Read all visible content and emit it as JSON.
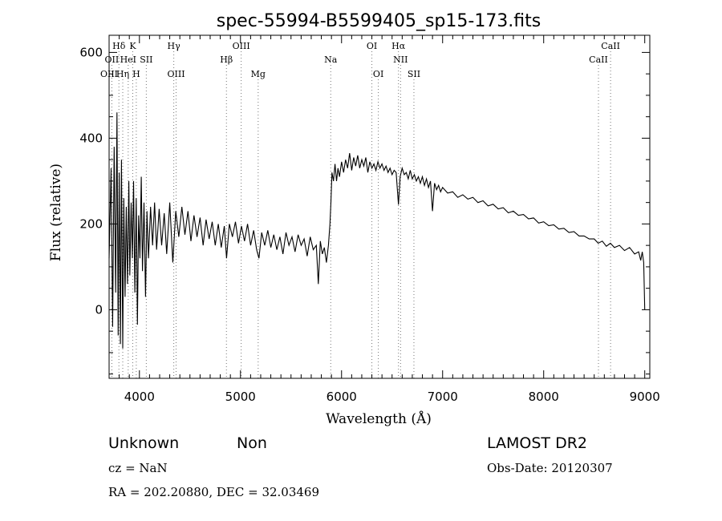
{
  "chart_data": {
    "type": "line",
    "title": "spec-55994-B5599405_sp15-173.fits",
    "xlabel": "Wavelength (Å)",
    "ylabel": "Flux (relative)",
    "xlim": [
      3700,
      9050
    ],
    "ylim": [
      -160,
      640
    ],
    "xticks": [
      4000,
      5000,
      6000,
      7000,
      8000,
      9000
    ],
    "yticks": [
      0,
      200,
      400,
      600
    ],
    "grid": false,
    "line_color": "#000000",
    "series": [
      {
        "values": [
          [
            3700,
            120
          ],
          [
            3720,
            330
          ],
          [
            3735,
            -40
          ],
          [
            3750,
            380
          ],
          [
            3765,
            40
          ],
          [
            3778,
            460
          ],
          [
            3790,
            -60
          ],
          [
            3800,
            320
          ],
          [
            3812,
            -80
          ],
          [
            3822,
            350
          ],
          [
            3835,
            -90
          ],
          [
            3845,
            260
          ],
          [
            3858,
            30
          ],
          [
            3870,
            240
          ],
          [
            3882,
            60
          ],
          [
            3895,
            300
          ],
          [
            3905,
            80
          ],
          [
            3918,
            250
          ],
          [
            3930,
            120
          ],
          [
            3942,
            300
          ],
          [
            3955,
            40
          ],
          [
            3968,
            260
          ],
          [
            3980,
            -35
          ],
          [
            3992,
            220
          ],
          [
            4005,
            120
          ],
          [
            4018,
            310
          ],
          [
            4030,
            90
          ],
          [
            4045,
            250
          ],
          [
            4060,
            30
          ],
          [
            4075,
            230
          ],
          [
            4090,
            120
          ],
          [
            4110,
            240
          ],
          [
            4130,
            150
          ],
          [
            4150,
            250
          ],
          [
            4170,
            140
          ],
          [
            4195,
            235
          ],
          [
            4220,
            150
          ],
          [
            4245,
            225
          ],
          [
            4270,
            130
          ],
          [
            4300,
            250
          ],
          [
            4330,
            110
          ],
          [
            4360,
            230
          ],
          [
            4390,
            170
          ],
          [
            4420,
            240
          ],
          [
            4450,
            175
          ],
          [
            4480,
            230
          ],
          [
            4510,
            160
          ],
          [
            4540,
            220
          ],
          [
            4570,
            170
          ],
          [
            4600,
            215
          ],
          [
            4630,
            150
          ],
          [
            4660,
            210
          ],
          [
            4690,
            165
          ],
          [
            4720,
            205
          ],
          [
            4750,
            150
          ],
          [
            4780,
            200
          ],
          [
            4810,
            145
          ],
          [
            4840,
            195
          ],
          [
            4862,
            120
          ],
          [
            4890,
            200
          ],
          [
            4920,
            170
          ],
          [
            4950,
            205
          ],
          [
            4980,
            155
          ],
          [
            5010,
            195
          ],
          [
            5040,
            160
          ],
          [
            5070,
            200
          ],
          [
            5100,
            150
          ],
          [
            5130,
            185
          ],
          [
            5160,
            140
          ],
          [
            5183,
            120
          ],
          [
            5210,
            180
          ],
          [
            5240,
            150
          ],
          [
            5270,
            185
          ],
          [
            5300,
            145
          ],
          [
            5330,
            175
          ],
          [
            5360,
            140
          ],
          [
            5390,
            170
          ],
          [
            5420,
            130
          ],
          [
            5450,
            180
          ],
          [
            5480,
            150
          ],
          [
            5510,
            170
          ],
          [
            5540,
            135
          ],
          [
            5570,
            175
          ],
          [
            5600,
            150
          ],
          [
            5630,
            165
          ],
          [
            5660,
            125
          ],
          [
            5690,
            170
          ],
          [
            5720,
            140
          ],
          [
            5750,
            150
          ],
          [
            5770,
            60
          ],
          [
            5790,
            160
          ],
          [
            5810,
            130
          ],
          [
            5830,
            145
          ],
          [
            5850,
            110
          ],
          [
            5870,
            150
          ],
          [
            5885,
            200
          ],
          [
            5895,
            250
          ],
          [
            5905,
            320
          ],
          [
            5920,
            300
          ],
          [
            5935,
            340
          ],
          [
            5950,
            300
          ],
          [
            5965,
            330
          ],
          [
            5980,
            310
          ],
          [
            6000,
            345
          ],
          [
            6020,
            320
          ],
          [
            6040,
            350
          ],
          [
            6060,
            330
          ],
          [
            6080,
            365
          ],
          [
            6100,
            325
          ],
          [
            6120,
            355
          ],
          [
            6140,
            335
          ],
          [
            6160,
            360
          ],
          [
            6180,
            330
          ],
          [
            6200,
            350
          ],
          [
            6220,
            335
          ],
          [
            6240,
            355
          ],
          [
            6260,
            320
          ],
          [
            6280,
            345
          ],
          [
            6300,
            330
          ],
          [
            6320,
            340
          ],
          [
            6340,
            325
          ],
          [
            6360,
            345
          ],
          [
            6380,
            330
          ],
          [
            6400,
            340
          ],
          [
            6420,
            325
          ],
          [
            6440,
            335
          ],
          [
            6460,
            320
          ],
          [
            6480,
            330
          ],
          [
            6500,
            315
          ],
          [
            6520,
            325
          ],
          [
            6540,
            320
          ],
          [
            6563,
            245
          ],
          [
            6580,
            310
          ],
          [
            6600,
            330
          ],
          [
            6620,
            315
          ],
          [
            6640,
            320
          ],
          [
            6660,
            305
          ],
          [
            6680,
            325
          ],
          [
            6700,
            305
          ],
          [
            6720,
            315
          ],
          [
            6740,
            300
          ],
          [
            6760,
            310
          ],
          [
            6780,
            295
          ],
          [
            6800,
            310
          ],
          [
            6820,
            290
          ],
          [
            6840,
            305
          ],
          [
            6860,
            285
          ],
          [
            6880,
            300
          ],
          [
            6900,
            230
          ],
          [
            6920,
            295
          ],
          [
            6940,
            280
          ],
          [
            6960,
            290
          ],
          [
            6980,
            275
          ],
          [
            7000,
            285
          ],
          [
            7050,
            272
          ],
          [
            7100,
            275
          ],
          [
            7150,
            262
          ],
          [
            7200,
            268
          ],
          [
            7250,
            258
          ],
          [
            7300,
            262
          ],
          [
            7350,
            250
          ],
          [
            7400,
            254
          ],
          [
            7450,
            242
          ],
          [
            7500,
            246
          ],
          [
            7550,
            235
          ],
          [
            7600,
            238
          ],
          [
            7650,
            226
          ],
          [
            7700,
            230
          ],
          [
            7750,
            220
          ],
          [
            7800,
            222
          ],
          [
            7850,
            212
          ],
          [
            7900,
            214
          ],
          [
            7950,
            202
          ],
          [
            8000,
            205
          ],
          [
            8050,
            196
          ],
          [
            8100,
            198
          ],
          [
            8150,
            188
          ],
          [
            8200,
            190
          ],
          [
            8250,
            180
          ],
          [
            8300,
            182
          ],
          [
            8350,
            172
          ],
          [
            8400,
            172
          ],
          [
            8450,
            165
          ],
          [
            8500,
            165
          ],
          [
            8540,
            155
          ],
          [
            8580,
            160
          ],
          [
            8620,
            148
          ],
          [
            8660,
            155
          ],
          [
            8700,
            145
          ],
          [
            8750,
            150
          ],
          [
            8800,
            138
          ],
          [
            8850,
            145
          ],
          [
            8900,
            130
          ],
          [
            8940,
            135
          ],
          [
            8960,
            115
          ],
          [
            8975,
            135
          ],
          [
            8990,
            110
          ],
          [
            9000,
            0
          ]
        ]
      }
    ],
    "lines": [
      {
        "label": "Hδ",
        "x": 3797,
        "row": 0
      },
      {
        "label": "K",
        "x": 3934,
        "row": 0
      },
      {
        "label": "Hγ",
        "x": 4340,
        "row": 0
      },
      {
        "label": "OIII",
        "x": 5007,
        "row": 0
      },
      {
        "label": "OI",
        "x": 6300,
        "row": 0
      },
      {
        "label": "Hα",
        "x": 6563,
        "row": 0
      },
      {
        "label": "CaII",
        "x": 8662,
        "row": 0
      },
      {
        "label": "OII",
        "x": 3727,
        "row": 1
      },
      {
        "label": "HeI",
        "x": 3889,
        "row": 1
      },
      {
        "label": "SII",
        "x": 4068,
        "row": 1
      },
      {
        "label": "Hβ",
        "x": 4861,
        "row": 1
      },
      {
        "label": "Na",
        "x": 5893,
        "row": 1
      },
      {
        "label": "NII",
        "x": 6584,
        "row": 1
      },
      {
        "label": "CaII",
        "x": 8542,
        "row": 1
      },
      {
        "label": "OIII",
        "x": 3700,
        "row": 2
      },
      {
        "label": "Hη",
        "x": 3835,
        "row": 2
      },
      {
        "label": "H",
        "x": 3969,
        "row": 2
      },
      {
        "label": "OIII",
        "x": 4363,
        "row": 2
      },
      {
        "label": "Mg",
        "x": 5175,
        "row": 2
      },
      {
        "label": "OI",
        "x": 6364,
        "row": 2
      },
      {
        "label": "SII",
        "x": 6716,
        "row": 2
      }
    ]
  },
  "info": {
    "class": "Unknown",
    "subclass": "Non",
    "survey": "LAMOST DR2",
    "cz": "cz = NaN",
    "obs_date": "Obs-Date: 20120307",
    "coords": "RA = 202.20880, DEC =  32.03469"
  }
}
